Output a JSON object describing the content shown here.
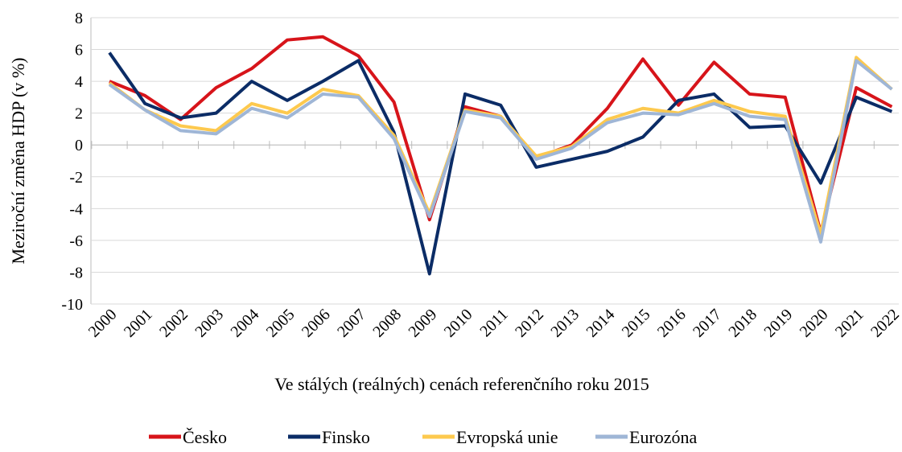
{
  "chart_data": {
    "type": "line",
    "y_label": "Meziroční změna HDP (v %)",
    "x_label": "Ve stálých (reálných) cenách referenčního roku 2015",
    "categories": [
      "2000",
      "2001",
      "2002",
      "2003",
      "2004",
      "2005",
      "2006",
      "2007",
      "2008",
      "2009",
      "2010",
      "2011",
      "2012",
      "2013",
      "2014",
      "2015",
      "2016",
      "2017",
      "2018",
      "2019",
      "2020",
      "2021",
      "2022"
    ],
    "series": [
      {
        "name": "Česko",
        "color": "#d7141a",
        "values": [
          4.0,
          3.1,
          1.6,
          3.6,
          4.8,
          6.6,
          6.8,
          5.6,
          2.7,
          -4.7,
          2.4,
          1.8,
          -0.8,
          0.0,
          2.3,
          5.4,
          2.5,
          5.2,
          3.2,
          3.0,
          -5.5,
          3.6,
          2.4
        ]
      },
      {
        "name": "Finsko",
        "color": "#0b2c66",
        "values": [
          5.8,
          2.6,
          1.7,
          2.0,
          4.0,
          2.8,
          4.0,
          5.3,
          0.8,
          -8.1,
          3.2,
          2.5,
          -1.4,
          -0.9,
          -0.4,
          0.5,
          2.8,
          3.2,
          1.1,
          1.2,
          -2.4,
          3.0,
          2.1
        ]
      },
      {
        "name": "Evropská unie",
        "color": "#fdc94e",
        "values": [
          3.9,
          2.2,
          1.2,
          0.9,
          2.6,
          2.0,
          3.5,
          3.1,
          0.6,
          -4.3,
          2.2,
          1.8,
          -0.7,
          -0.1,
          1.6,
          2.3,
          2.0,
          2.8,
          2.1,
          1.8,
          -5.6,
          5.5,
          3.5
        ]
      },
      {
        "name": "Eurozóna",
        "color": "#9fb6d6",
        "values": [
          3.8,
          2.2,
          0.9,
          0.7,
          2.3,
          1.7,
          3.2,
          3.0,
          0.4,
          -4.5,
          2.1,
          1.7,
          -0.9,
          -0.2,
          1.4,
          2.0,
          1.9,
          2.6,
          1.8,
          1.6,
          -6.1,
          5.3,
          3.5
        ]
      }
    ],
    "ylim": [
      -10,
      8
    ],
    "yticks": [
      -10,
      -8,
      -6,
      -4,
      -2,
      0,
      2,
      4,
      6,
      8
    ],
    "grid": true,
    "legend": "bottom"
  }
}
